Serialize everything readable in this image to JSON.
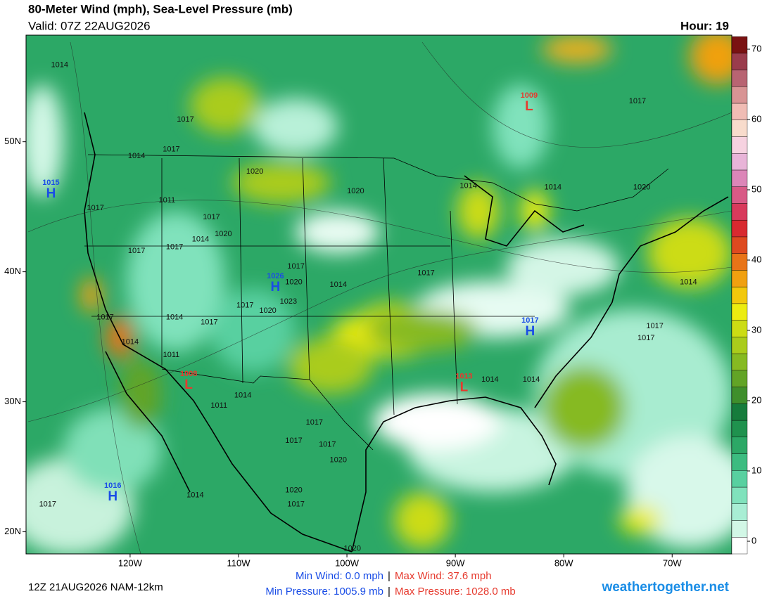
{
  "header": {
    "title": "80-Meter Wind (mph), Sea-Level Pressure (mb)",
    "valid": "Valid: 07Z 22AUG2026",
    "hour": "Hour: 19"
  },
  "map": {
    "lonlim": [
      -129.6,
      -64.5
    ],
    "latlim": [
      18.3,
      58.2
    ],
    "lonticks": [
      {
        "value": -120,
        "label": "120W"
      },
      {
        "value": -110,
        "label": "110W"
      },
      {
        "value": -100,
        "label": "100W"
      },
      {
        "value": -90,
        "label": "90W"
      },
      {
        "value": -80,
        "label": "80W"
      },
      {
        "value": -70,
        "label": "70W"
      }
    ],
    "latticks": [
      {
        "value": 50,
        "label": "50N"
      },
      {
        "value": 40,
        "label": "40N"
      },
      {
        "value": 30,
        "label": "30N"
      },
      {
        "value": 20,
        "label": "20N"
      }
    ],
    "isobar_labels": [
      {
        "value": 1014,
        "lon": -126.5,
        "lat": 55.9
      },
      {
        "value": 1017,
        "lon": -114.9,
        "lat": 51.7
      },
      {
        "value": 1017,
        "lon": -116.2,
        "lat": 49.4
      },
      {
        "value": 1014,
        "lon": -119.4,
        "lat": 48.9
      },
      {
        "value": 1020,
        "lon": -108.5,
        "lat": 47.7
      },
      {
        "value": 1020,
        "lon": -99.2,
        "lat": 46.2
      },
      {
        "value": 1011,
        "lon": -116.6,
        "lat": 45.5
      },
      {
        "value": 1017,
        "lon": -123.2,
        "lat": 44.9
      },
      {
        "value": 1017,
        "lon": -112.5,
        "lat": 44.2
      },
      {
        "value": 1020,
        "lon": -111.4,
        "lat": 42.9
      },
      {
        "value": 1014,
        "lon": -113.5,
        "lat": 42.5
      },
      {
        "value": 1017,
        "lon": -115.9,
        "lat": 41.9
      },
      {
        "value": 1017,
        "lon": -119.4,
        "lat": 41.6
      },
      {
        "value": 1017,
        "lon": -104.7,
        "lat": 40.4
      },
      {
        "value": 1020,
        "lon": -104.9,
        "lat": 39.2
      },
      {
        "value": 1023,
        "lon": -105.4,
        "lat": 37.7
      },
      {
        "value": 1017,
        "lon": -109.4,
        "lat": 37.4
      },
      {
        "value": 1020,
        "lon": -107.3,
        "lat": 37.0
      },
      {
        "value": 1014,
        "lon": -115.9,
        "lat": 36.5
      },
      {
        "value": 1017,
        "lon": -112.7,
        "lat": 36.1
      },
      {
        "value": 1017,
        "lon": -122.3,
        "lat": 36.5
      },
      {
        "value": 1014,
        "lon": -120.0,
        "lat": 34.6
      },
      {
        "value": 1011,
        "lon": -116.2,
        "lat": 33.6
      },
      {
        "value": 1011,
        "lon": -111.8,
        "lat": 29.7
      },
      {
        "value": 1014,
        "lon": -109.6,
        "lat": 30.5
      },
      {
        "value": 1014,
        "lon": -100.8,
        "lat": 39.0
      },
      {
        "value": 1017,
        "lon": -92.7,
        "lat": 39.9
      },
      {
        "value": 1014,
        "lon": -88.8,
        "lat": 46.6
      },
      {
        "value": 1014,
        "lon": -81.0,
        "lat": 46.5
      },
      {
        "value": 1020,
        "lon": -72.8,
        "lat": 46.5
      },
      {
        "value": 1017,
        "lon": -73.2,
        "lat": 53.1
      },
      {
        "value": 1014,
        "lon": -68.5,
        "lat": 39.2
      },
      {
        "value": 1017,
        "lon": -71.6,
        "lat": 35.8
      },
      {
        "value": 1017,
        "lon": -72.4,
        "lat": 34.9
      },
      {
        "value": 1014,
        "lon": -86.8,
        "lat": 31.7
      },
      {
        "value": 1014,
        "lon": -83.0,
        "lat": 31.7
      },
      {
        "value": 1017,
        "lon": -103.0,
        "lat": 28.4
      },
      {
        "value": 1017,
        "lon": -104.9,
        "lat": 27.0
      },
      {
        "value": 1017,
        "lon": -101.8,
        "lat": 26.7
      },
      {
        "value": 1020,
        "lon": -100.8,
        "lat": 25.5
      },
      {
        "value": 1020,
        "lon": -104.9,
        "lat": 23.2
      },
      {
        "value": 1017,
        "lon": -104.7,
        "lat": 22.1
      },
      {
        "value": 1014,
        "lon": -114.0,
        "lat": 22.8
      },
      {
        "value": 1017,
        "lon": -127.6,
        "lat": 22.1
      },
      {
        "value": 1020,
        "lon": -99.5,
        "lat": 18.7
      }
    ],
    "centers": [
      {
        "symbol": "H",
        "value": 1015,
        "lon": -127.3,
        "lat": 46.2,
        "color": "#1a4de6"
      },
      {
        "symbol": "L",
        "value": 1009,
        "lon": -83.2,
        "lat": 52.9,
        "color": "#e63a2e"
      },
      {
        "symbol": "H",
        "value": 1026,
        "lon": -106.6,
        "lat": 39.0,
        "color": "#1a4de6"
      },
      {
        "symbol": "H",
        "value": 1017,
        "lon": -83.1,
        "lat": 35.6,
        "color": "#1a4de6"
      },
      {
        "symbol": "L",
        "value": 1008,
        "lon": -114.6,
        "lat": 31.5,
        "color": "#e63a2e"
      },
      {
        "symbol": "L",
        "value": 1013,
        "lon": -89.2,
        "lat": 31.3,
        "color": "#e63a2e"
      },
      {
        "symbol": "H",
        "value": 1016,
        "lon": -121.6,
        "lat": 22.9,
        "color": "#1a4de6"
      }
    ]
  },
  "colorbar": {
    "lim": [
      -1.8,
      71.8
    ],
    "ticks": [
      0,
      10,
      20,
      30,
      40,
      50,
      60,
      70
    ],
    "colors": [
      "#ffffff",
      "#d2f7e6",
      "#a8eed4",
      "#80e2bc",
      "#58d0a0",
      "#3cbc80",
      "#2ca866",
      "#1f924e",
      "#167c3c",
      "#3f8f2c",
      "#62a426",
      "#86ba22",
      "#aacc1c",
      "#ccdc14",
      "#ecec10",
      "#f2c80c",
      "#f0a010",
      "#e87418",
      "#de4a20",
      "#d82a30",
      "#d83a5c",
      "#d85a86",
      "#dc86b8",
      "#e8b4d8",
      "#f6d2e0",
      "#f8dccc",
      "#f0bcb4",
      "#d89494",
      "#b86472",
      "#9a3c4c",
      "#7a1212"
    ]
  },
  "footer": {
    "run": "12Z 21AUG2026 NAM-12km",
    "min_wind": "Min Wind:   0.0 mph",
    "max_wind": "Max Wind: 37.6 mph",
    "min_pressure": "Min Pressure: 1005.9 mb",
    "max_pressure": "Max Pressure: 1028.0 mb",
    "separator": "|",
    "site": "weathertogether.net"
  }
}
